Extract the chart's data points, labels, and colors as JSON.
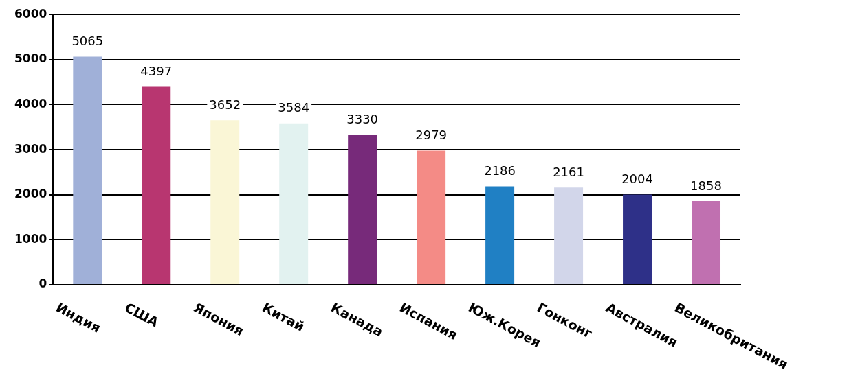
{
  "chart_data": {
    "type": "bar",
    "categories": [
      "Индия",
      "США",
      "Япония",
      "Китай",
      "Канада",
      "Испания",
      "Юж.Корея",
      "Гонконг",
      "Австралия",
      "Великобритания"
    ],
    "values": [
      5065,
      4397,
      3652,
      3584,
      3330,
      2979,
      2186,
      2161,
      2004,
      1858
    ],
    "colors": [
      "#a0b0d8",
      "#b83670",
      "#faf6d6",
      "#e2f2f0",
      "#772a7a",
      "#f48b86",
      "#2080c4",
      "#d2d6ea",
      "#2e3088",
      "#c070b0"
    ],
    "ylim": [
      0,
      6000
    ],
    "yticks": [
      0,
      1000,
      2000,
      3000,
      4000,
      5000,
      6000
    ],
    "grid": "y",
    "data_labels": true,
    "legend": false
  }
}
